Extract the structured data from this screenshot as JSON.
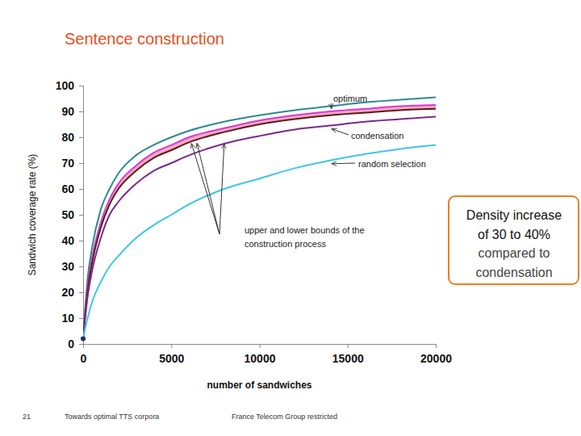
{
  "chart_data": {
    "type": "line",
    "title": "Sentence construction",
    "x_label": "number of sandwiches",
    "y_label": "Sandwich coverage rate (%)",
    "x": [
      0,
      250,
      500,
      1000,
      1500,
      2000,
      3000,
      4000,
      5000,
      6000,
      8000,
      10000,
      12000,
      14000,
      16000,
      18000,
      20000
    ],
    "series": [
      {
        "name": "optimum",
        "color": "#2b8a8e",
        "values": [
          2,
          25,
          37,
          52,
          60,
          66,
          73,
          77,
          80,
          82.5,
          86,
          88.5,
          90.5,
          92,
          93.5,
          94.5,
          95.5
        ]
      },
      {
        "color": "#d83ad6",
        "values": [
          2,
          22,
          33,
          47,
          56,
          62,
          69,
          74,
          77,
          80,
          83.5,
          86.5,
          88.5,
          90,
          91,
          92,
          92.5
        ]
      },
      {
        "color": "#5a1c12",
        "values": [
          2,
          20,
          31,
          45,
          54,
          60,
          67,
          72,
          75,
          78,
          82,
          85,
          87,
          88.5,
          89.5,
          90.5,
          91
        ]
      },
      {
        "name": "condensation",
        "color": "#7a2a88",
        "values": [
          2,
          18,
          28,
          41,
          50,
          55,
          62,
          67,
          70,
          73,
          77.5,
          80.5,
          83,
          84.5,
          86,
          87,
          88
        ]
      },
      {
        "name": "random selection",
        "color": "#3fc6e6",
        "values": [
          2,
          10,
          16,
          24,
          30,
          34,
          41,
          46,
          50,
          54,
          60,
          64,
          68,
          71,
          73.5,
          75.5,
          77
        ]
      }
    ],
    "xlim": [
      0,
      20000
    ],
    "xticks": [
      0,
      5000,
      10000,
      15000,
      20000
    ],
    "ylim": [
      0,
      100
    ],
    "yticks": [
      0,
      10,
      20,
      30,
      40,
      50,
      60,
      70,
      80,
      90,
      100
    ],
    "grid": false,
    "annotations": [
      [
        "upper and lower bounds of the",
        "construction process"
      ]
    ],
    "callout": [
      "Density increase",
      "of 30 to 40%",
      "compared to",
      "condensation"
    ],
    "footer": [
      "21",
      "Towards optimal TTS corpora",
      "France Telecom Group restricted"
    ]
  }
}
